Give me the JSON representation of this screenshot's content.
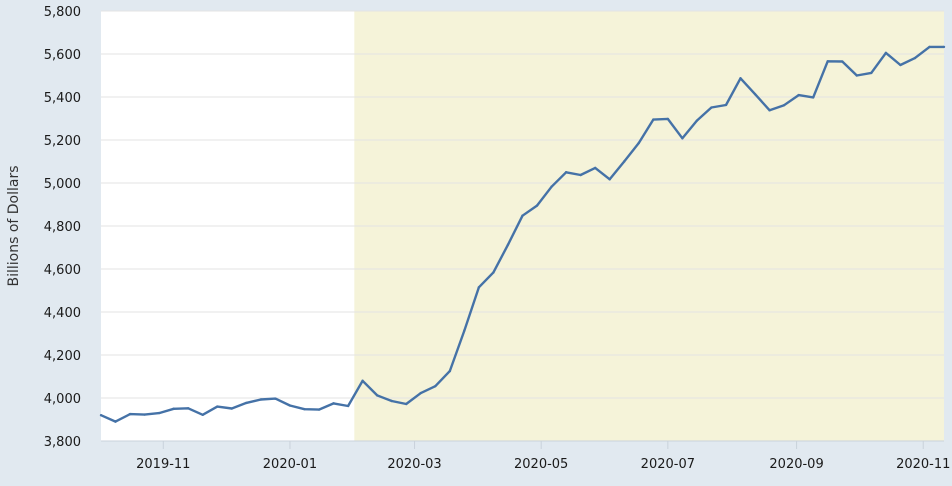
{
  "chart_data": {
    "type": "line",
    "title": "",
    "xlabel": "",
    "ylabel": "Billions of Dollars",
    "ylim": [
      3800,
      5800
    ],
    "xlim": [
      "2019-10-02",
      "2020-11-11"
    ],
    "y_ticks": [
      3800,
      4000,
      4200,
      4400,
      4600,
      4800,
      5000,
      5200,
      5400,
      5600,
      5800
    ],
    "y_tick_labels": [
      "3,800",
      "4,000",
      "4,200",
      "4,400",
      "4,600",
      "4,800",
      "5,000",
      "5,200",
      "5,400",
      "5,600",
      "5,800"
    ],
    "x_ticks": [
      "2019-11-01",
      "2020-01-01",
      "2020-03-01",
      "2020-05-01",
      "2020-07-01",
      "2020-09-01",
      "2020-11-01"
    ],
    "x_tick_labels": [
      "2019-11",
      "2020-01",
      "2020-03",
      "2020-05",
      "2020-07",
      "2020-09",
      "2020-11"
    ],
    "grid": "horizontal",
    "shaded_region": {
      "start": "2020-02-01",
      "end": "2020-11-11",
      "color": "#f5f3d9"
    },
    "series": [
      {
        "color": "#4572a7",
        "x": [
          "2019-10-02",
          "2019-10-09",
          "2019-10-16",
          "2019-10-23",
          "2019-10-30",
          "2019-11-06",
          "2019-11-13",
          "2019-11-20",
          "2019-11-27",
          "2019-12-04",
          "2019-12-11",
          "2019-12-18",
          "2019-12-25",
          "2020-01-01",
          "2020-01-08",
          "2020-01-15",
          "2020-01-22",
          "2020-01-29",
          "2020-02-05",
          "2020-02-12",
          "2020-02-19",
          "2020-02-26",
          "2020-03-04",
          "2020-03-11",
          "2020-03-18",
          "2020-03-25",
          "2020-04-01",
          "2020-04-08",
          "2020-04-15",
          "2020-04-22",
          "2020-04-29",
          "2020-05-06",
          "2020-05-13",
          "2020-05-20",
          "2020-05-27",
          "2020-06-03",
          "2020-06-10",
          "2020-06-17",
          "2020-06-24",
          "2020-07-01",
          "2020-07-08",
          "2020-07-15",
          "2020-07-22",
          "2020-07-29",
          "2020-08-05",
          "2020-08-12",
          "2020-08-19",
          "2020-08-26",
          "2020-09-02",
          "2020-09-09",
          "2020-09-16",
          "2020-09-23",
          "2020-09-30",
          "2020-10-07",
          "2020-10-14",
          "2020-10-21",
          "2020-10-28",
          "2020-11-04",
          "2020-11-11"
        ],
        "values": [
          3920,
          3890,
          3925,
          3923,
          3930,
          3950,
          3952,
          3922,
          3960,
          3951,
          3977,
          3993,
          3997,
          3965,
          3948,
          3946,
          3975,
          3963,
          4080,
          4012,
          3986,
          3972,
          4023,
          4055,
          4125,
          4314,
          4515,
          4584,
          4713,
          4848,
          4895,
          4983,
          5050,
          5037,
          5070,
          5017,
          5100,
          5186,
          5295,
          5298,
          5208,
          5290,
          5351,
          5363,
          5487,
          5413,
          5338,
          5362,
          5409,
          5398,
          5566,
          5565,
          5500,
          5512,
          5605,
          5549,
          5581,
          5633,
          5633
        ]
      }
    ]
  }
}
